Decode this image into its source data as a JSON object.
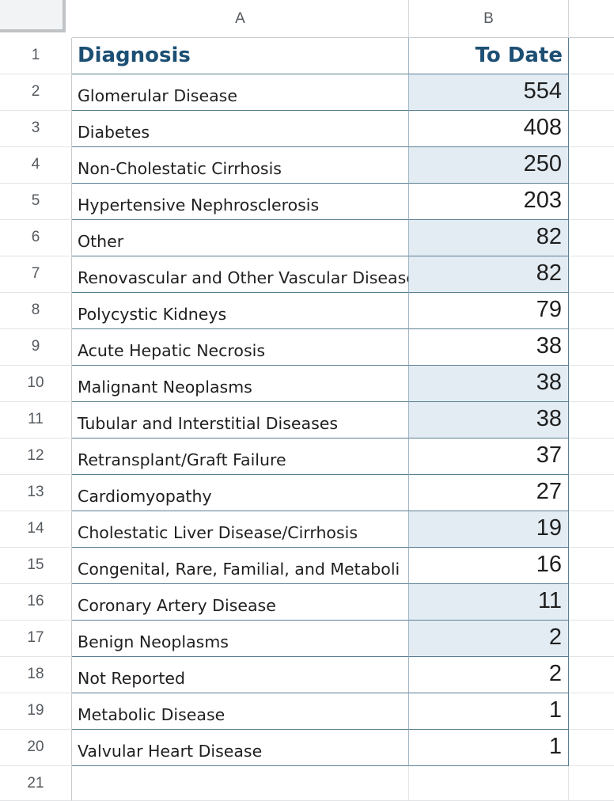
{
  "columns": {
    "a": "A",
    "b": "B"
  },
  "header": {
    "diagnosis": "Diagnosis",
    "to_date": "To Date"
  },
  "row_numbers": [
    "1",
    "2",
    "3",
    "4",
    "5",
    "6",
    "7",
    "8",
    "9",
    "10",
    "11",
    "12",
    "13",
    "14",
    "15",
    "16",
    "17",
    "18",
    "19",
    "20",
    "21"
  ],
  "rows": [
    {
      "diagnosis": "Glomerular Disease",
      "to_date": "554",
      "shaded": true
    },
    {
      "diagnosis": "Diabetes",
      "to_date": "408",
      "shaded": false
    },
    {
      "diagnosis": "Non-Cholestatic Cirrhosis",
      "to_date": "250",
      "shaded": true
    },
    {
      "diagnosis": "Hypertensive Nephrosclerosis",
      "to_date": "203",
      "shaded": false
    },
    {
      "diagnosis": "Other",
      "to_date": "82",
      "shaded": true
    },
    {
      "diagnosis": "Renovascular and Other Vascular Disease",
      "to_date": "82",
      "shaded": true
    },
    {
      "diagnosis": "Polycystic Kidneys",
      "to_date": "79",
      "shaded": false
    },
    {
      "diagnosis": "Acute Hepatic Necrosis",
      "to_date": "38",
      "shaded": false
    },
    {
      "diagnosis": "Malignant Neoplasms",
      "to_date": "38",
      "shaded": true
    },
    {
      "diagnosis": "Tubular and Interstitial Diseases",
      "to_date": "38",
      "shaded": true
    },
    {
      "diagnosis": "Retransplant/Graft Failure",
      "to_date": "37",
      "shaded": false
    },
    {
      "diagnosis": "Cardiomyopathy",
      "to_date": "27",
      "shaded": false
    },
    {
      "diagnosis": "Cholestatic Liver Disease/Cirrhosis",
      "to_date": "19",
      "shaded": true
    },
    {
      "diagnosis": "Congenital, Rare, Familial, and Metaboli",
      "to_date": "16",
      "shaded": false
    },
    {
      "diagnosis": "Coronary Artery Disease",
      "to_date": "11",
      "shaded": true
    },
    {
      "diagnosis": "Benign Neoplasms",
      "to_date": "2",
      "shaded": true
    },
    {
      "diagnosis": "Not Reported",
      "to_date": "2",
      "shaded": false
    },
    {
      "diagnosis": "Metabolic Disease",
      "to_date": "1",
      "shaded": false
    },
    {
      "diagnosis": "Valvular Heart Disease",
      "to_date": "1",
      "shaded": false
    }
  ],
  "colors": {
    "header_text": "#1c4f73",
    "highlight": "#e3ecf3",
    "border": "#5a7f93"
  }
}
